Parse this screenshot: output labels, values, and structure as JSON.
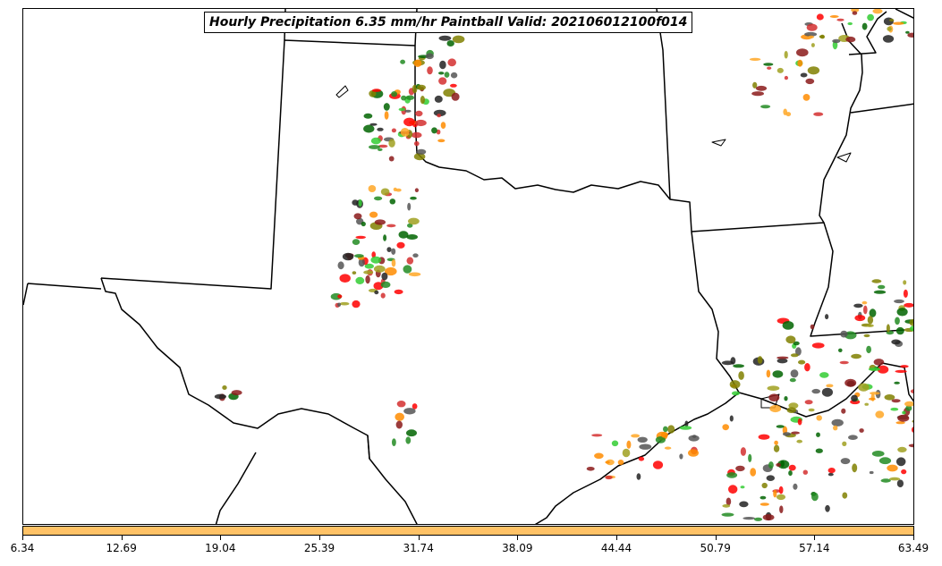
{
  "title": "Hourly Precipitation 6.35 mm/hr Paintball Valid: 202106012100f014",
  "colorbar": {
    "color": "#ffc266",
    "ticks": [
      "6.34",
      "12.69",
      "19.04",
      "25.39",
      "31.74",
      "38.09",
      "44.44",
      "50.79",
      "57.14",
      "63.49"
    ]
  },
  "member_colors": [
    "#228b22",
    "#006400",
    "#ff8c00",
    "#ffa726",
    "#ff0000",
    "#d32f2f",
    "#8b1a1a",
    "#808000",
    "#a0a020",
    "#222222",
    "#32cd32",
    "#555555"
  ],
  "icons": {
    "map": "state-borders-map"
  }
}
